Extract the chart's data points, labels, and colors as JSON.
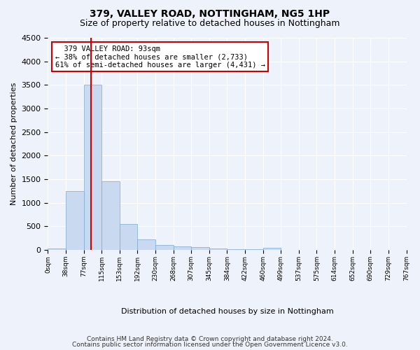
{
  "title1": "379, VALLEY ROAD, NOTTINGHAM, NG5 1HP",
  "title2": "Size of property relative to detached houses in Nottingham",
  "xlabel": "Distribution of detached houses by size in Nottingham",
  "ylabel": "Number of detached properties",
  "footer1": "Contains HM Land Registry data © Crown copyright and database right 2024.",
  "footer2": "Contains public sector information licensed under the Open Government Licence v3.0.",
  "bin_labels": [
    "0sqm",
    "38sqm",
    "77sqm",
    "115sqm",
    "153sqm",
    "192sqm",
    "230sqm",
    "268sqm",
    "307sqm",
    "345sqm",
    "384sqm",
    "422sqm",
    "460sqm",
    "499sqm",
    "537sqm",
    "575sqm",
    "614sqm",
    "652sqm",
    "690sqm",
    "729sqm",
    "767sqm"
  ],
  "bar_values": [
    30,
    1250,
    3500,
    1450,
    550,
    225,
    110,
    75,
    55,
    35,
    20,
    10,
    50,
    0,
    0,
    0,
    0,
    0,
    0,
    0
  ],
  "bar_color": "#c9d9f0",
  "bar_edge_color": "#7aaad0",
  "property_size": 93,
  "property_label": "379 VALLEY ROAD: 93sqm",
  "pct_smaller": 38,
  "n_smaller": 2733,
  "pct_larger": 61,
  "n_larger": 4431,
  "vline_color": "#cc0000",
  "annotation_box_color": "#cc0000",
  "ylim": [
    0,
    4500
  ],
  "yticks": [
    0,
    500,
    1000,
    1500,
    2000,
    2500,
    3000,
    3500,
    4000,
    4500
  ],
  "background_color": "#eef2fb",
  "grid_color": "#ffffff"
}
